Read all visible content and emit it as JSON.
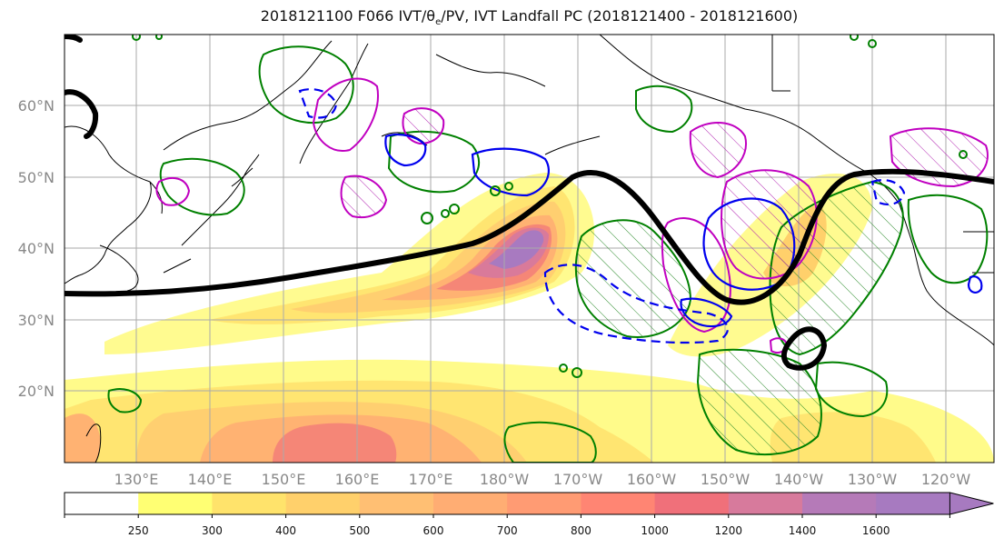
{
  "title": {
    "prefix": "2018121100 F066 IVT/θ",
    "sub": "e",
    "suffix": "/PV, IVT Landfall PC (2018121400 - 2018121600)"
  },
  "map": {
    "lat_labels": [
      "60°N",
      "50°N",
      "40°N",
      "30°N",
      "20°N"
    ],
    "lon_labels": [
      "130°E",
      "140°E",
      "150°E",
      "160°E",
      "170°E",
      "180°W",
      "170°W",
      "160°W",
      "150°W",
      "140°W",
      "130°W",
      "120°W"
    ]
  },
  "colorbar": {
    "levels": [
      "250",
      "300",
      "400",
      "500",
      "600",
      "700",
      "800",
      "1000",
      "1200",
      "1400",
      "1600"
    ],
    "colors": [
      "#ffffff",
      "#ffff73",
      "#ffe36b",
      "#ffd06b",
      "#ffbf73",
      "#ffad73",
      "#ff9b73",
      "#ff8573",
      "#f0707a",
      "#d77a9c",
      "#b57ab8",
      "#a77ac0"
    ]
  }
}
